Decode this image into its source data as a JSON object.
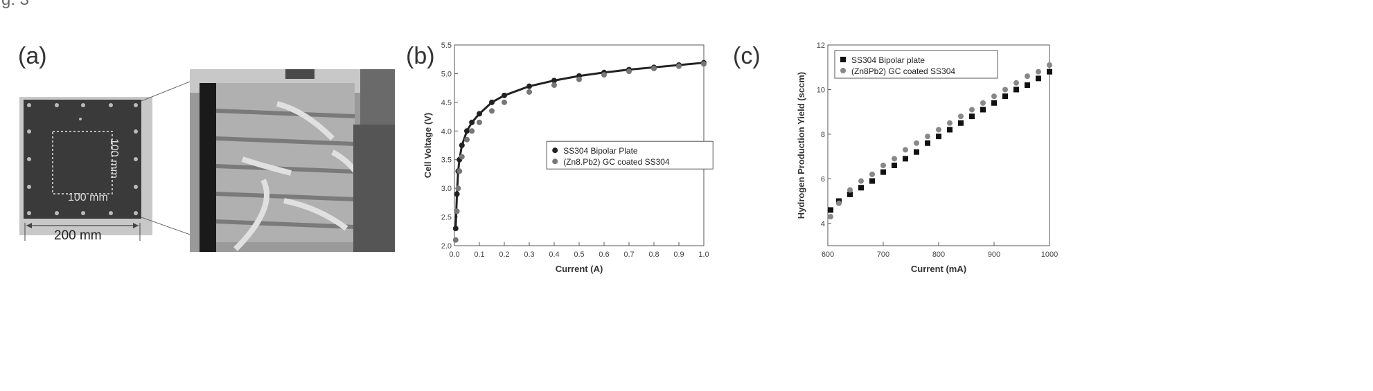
{
  "header_fragment": "g. 3",
  "panel_a": {
    "label": "(a)",
    "dim_outer": "200 mm",
    "dim_inner_h": "100 mm",
    "dim_inner_v": "100 mm",
    "photo": "electrolyser-stack-photo"
  },
  "chart_data": [
    {
      "panel": "(b)",
      "type": "scatter",
      "title": "",
      "xlabel": "Current (A)",
      "ylabel": "Cell Voltage (V)",
      "xlim": [
        0.0,
        1.0
      ],
      "ylim": [
        2.0,
        5.5
      ],
      "xticks": [
        "0.0",
        "0.1",
        "0.2",
        "0.3",
        "0.4",
        "0.5",
        "0.6",
        "0.7",
        "0.8",
        "0.9",
        "1.0"
      ],
      "yticks": [
        "2.0",
        "2.5",
        "3.0",
        "3.5",
        "4.0",
        "4.5",
        "5.0",
        "5.5"
      ],
      "legend_position": "center",
      "series": [
        {
          "name": "SS304 Bipolar Plate",
          "color": "#222222",
          "x": [
            0.005,
            0.01,
            0.015,
            0.02,
            0.03,
            0.05,
            0.07,
            0.1,
            0.15,
            0.2,
            0.3,
            0.4,
            0.5,
            0.6,
            0.7,
            0.8,
            0.9,
            1.0
          ],
          "y": [
            2.3,
            2.9,
            3.3,
            3.5,
            3.75,
            4.0,
            4.15,
            4.3,
            4.5,
            4.62,
            4.78,
            4.88,
            4.96,
            5.02,
            5.07,
            5.11,
            5.15,
            5.19
          ]
        },
        {
          "name": "(Zn8.Pb2) GC coated SS304",
          "color": "#777777",
          "x": [
            0.005,
            0.01,
            0.015,
            0.02,
            0.03,
            0.05,
            0.07,
            0.1,
            0.15,
            0.2,
            0.3,
            0.4,
            0.5,
            0.6,
            0.7,
            0.8,
            0.9,
            1.0
          ],
          "y": [
            2.1,
            2.6,
            3.0,
            3.3,
            3.55,
            3.85,
            4.0,
            4.15,
            4.35,
            4.5,
            4.68,
            4.8,
            4.9,
            4.98,
            5.04,
            5.09,
            5.13,
            5.17
          ]
        }
      ]
    },
    {
      "panel": "(c)",
      "type": "scatter",
      "title": "",
      "xlabel": "Current (mA)",
      "ylabel": "Hydrogen Production Yield (sccm)",
      "xlim": [
        600,
        1000
      ],
      "ylim": [
        3,
        12
      ],
      "xticks": [
        "600",
        "700",
        "800",
        "900",
        "1000"
      ],
      "yticks": [
        "4",
        "6",
        "8",
        "10",
        "12"
      ],
      "legend_position": "top-left",
      "series": [
        {
          "name": "SS304 Bipolar plate",
          "color": "#111111",
          "x": [
            605,
            620,
            640,
            660,
            680,
            700,
            720,
            740,
            760,
            780,
            800,
            820,
            840,
            860,
            880,
            900,
            920,
            940,
            960,
            980,
            1000
          ],
          "y": [
            4.6,
            5.0,
            5.3,
            5.6,
            5.9,
            6.3,
            6.6,
            6.9,
            7.2,
            7.6,
            7.9,
            8.2,
            8.5,
            8.8,
            9.1,
            9.4,
            9.7,
            10.0,
            10.2,
            10.5,
            10.8
          ]
        },
        {
          "name": "(Zn8Pb2) GC coated SS304",
          "color": "#888888",
          "x": [
            605,
            620,
            640,
            660,
            680,
            700,
            720,
            740,
            760,
            780,
            800,
            820,
            840,
            860,
            880,
            900,
            920,
            940,
            960,
            980,
            1000
          ],
          "y": [
            4.3,
            4.9,
            5.5,
            5.9,
            6.2,
            6.6,
            6.9,
            7.3,
            7.6,
            7.9,
            8.2,
            8.5,
            8.8,
            9.1,
            9.4,
            9.7,
            10.0,
            10.3,
            10.6,
            10.8,
            11.1
          ]
        }
      ]
    }
  ]
}
